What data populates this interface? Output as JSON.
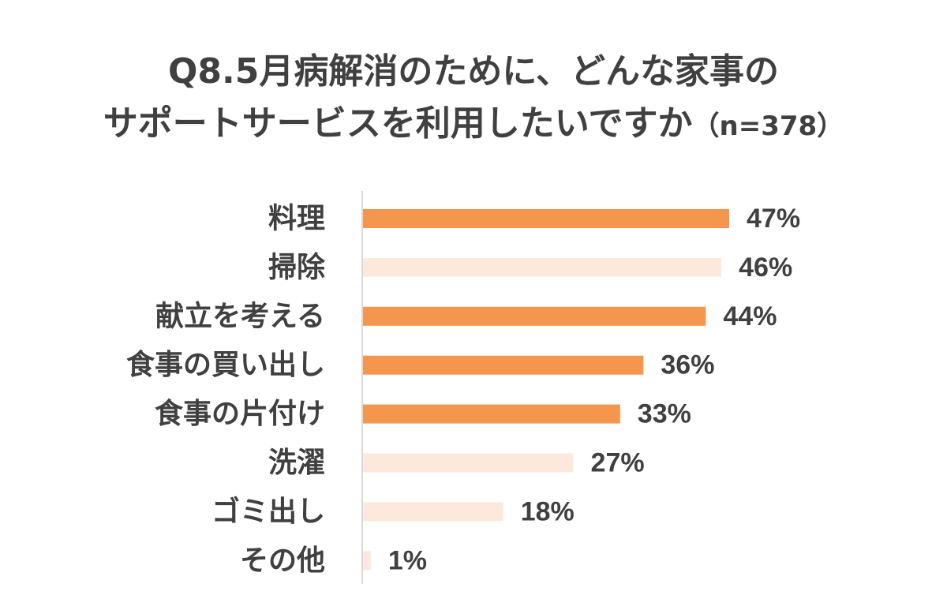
{
  "chart_data": {
    "type": "bar",
    "orientation": "horizontal",
    "title": "Q8.5月病解消のために、どんな家事の",
    "title_line2": "サポートサービスを利用したいですか",
    "sample_size": "（n=378）",
    "categories": [
      "料理",
      "掃除",
      "献立を考える",
      "食事の買い出し",
      "食事の片付け",
      "洗濯",
      "ゴミ出し",
      "その他"
    ],
    "values": [
      47,
      46,
      44,
      36,
      33,
      27,
      18,
      1
    ],
    "value_labels": [
      "47%",
      "46%",
      "44%",
      "36%",
      "33%",
      "27%",
      "18%",
      "1%"
    ],
    "highlight": [
      true,
      false,
      true,
      true,
      true,
      false,
      false,
      false
    ],
    "xlim": [
      0,
      50
    ],
    "grid": false,
    "colors": {
      "highlight": "#F4964E",
      "normal": "#FCE9DC",
      "axis": "#D9D9D9",
      "text": "#404040"
    }
  }
}
